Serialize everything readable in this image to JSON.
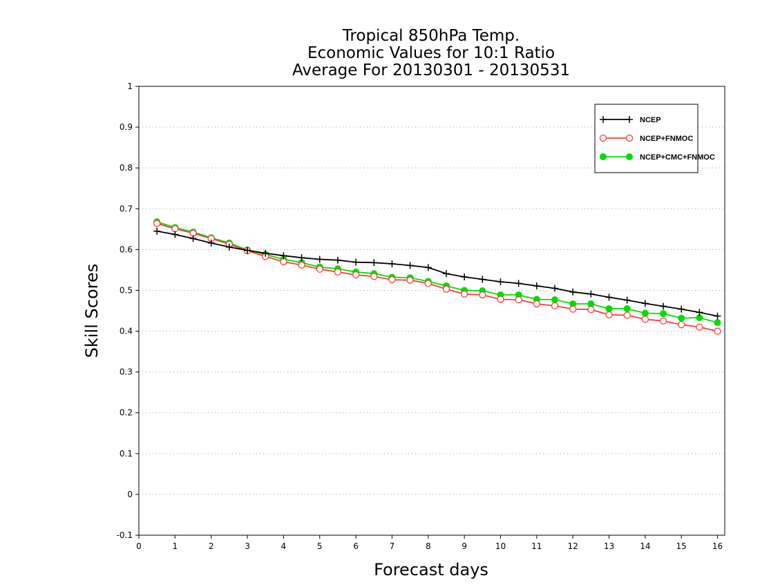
{
  "chart_data": {
    "type": "line",
    "title": [
      "Tropical 850hPa Temp.",
      "Economic Values for 10:1 Ratio",
      "Average For 20130301 - 20130531"
    ],
    "xlabel": "Forecast days",
    "ylabel": "Skill Scores",
    "xlim": [
      0,
      16.2
    ],
    "ylim": [
      -0.1,
      1
    ],
    "xticks": [
      "0",
      "1",
      "2",
      "3",
      "4",
      "5",
      "6",
      "7",
      "8",
      "9",
      "10",
      "11",
      "12",
      "13",
      "14",
      "15",
      "16"
    ],
    "yticks": [
      "-0.1",
      "0",
      "0.1",
      "0.2",
      "0.3",
      "0.4",
      "0.5",
      "0.6",
      "0.7",
      "0.8",
      "0.9",
      "1"
    ],
    "grid": "horizontal dotted",
    "legend_position": "top-right",
    "x": [
      0.5,
      1,
      1.5,
      2,
      2.5,
      3,
      3.5,
      4,
      4.5,
      5,
      5.5,
      6,
      6.5,
      7,
      7.5,
      8,
      8.5,
      9,
      9.5,
      10,
      10.5,
      11,
      11.5,
      12,
      12.5,
      13,
      13.5,
      14,
      14.5,
      15,
      15.5,
      16
    ],
    "series": [
      {
        "name": "NCEP",
        "color": "#000000",
        "marker": "plus",
        "values": [
          0.645,
          0.637,
          0.627,
          0.616,
          0.606,
          0.598,
          0.591,
          0.585,
          0.58,
          0.576,
          0.574,
          0.569,
          0.568,
          0.565,
          0.561,
          0.556,
          0.541,
          0.533,
          0.527,
          0.521,
          0.517,
          0.511,
          0.505,
          0.496,
          0.491,
          0.483,
          0.476,
          0.468,
          0.461,
          0.454,
          0.446,
          0.437
        ]
      },
      {
        "name": "NCEP+FNMOC",
        "color": "#ff3b3b",
        "marker": "open-circle",
        "values": [
          0.664,
          0.651,
          0.64,
          0.627,
          0.613,
          0.597,
          0.583,
          0.57,
          0.562,
          0.552,
          0.545,
          0.538,
          0.534,
          0.526,
          0.525,
          0.517,
          0.503,
          0.491,
          0.489,
          0.478,
          0.477,
          0.467,
          0.462,
          0.454,
          0.453,
          0.44,
          0.439,
          0.429,
          0.425,
          0.416,
          0.41,
          0.4
        ]
      },
      {
        "name": "NCEP+CMC+FNMOC",
        "color": "#00dd00",
        "marker": "filled-circle",
        "values": [
          0.668,
          0.654,
          0.643,
          0.629,
          0.616,
          0.599,
          0.588,
          0.576,
          0.568,
          0.557,
          0.553,
          0.545,
          0.541,
          0.532,
          0.531,
          0.522,
          0.511,
          0.5,
          0.499,
          0.489,
          0.489,
          0.478,
          0.477,
          0.467,
          0.467,
          0.455,
          0.455,
          0.444,
          0.443,
          0.432,
          0.433,
          0.421
        ]
      }
    ]
  }
}
